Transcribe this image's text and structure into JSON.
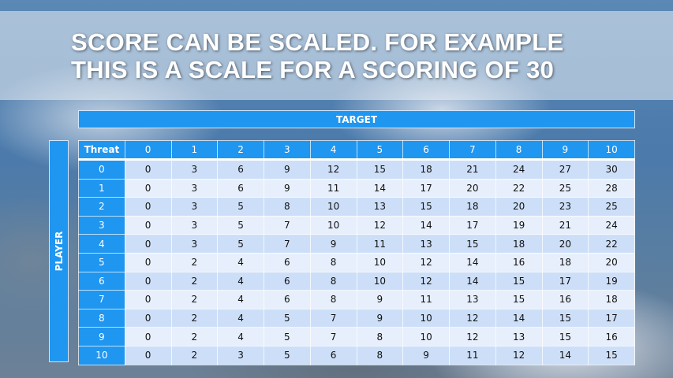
{
  "slide": {
    "title_lines": [
      "SCORE CAN BE SCALED. FOR EXAMPLE",
      "THIS IS A SCALE FOR A SCORING OF 30"
    ],
    "target_label": "TARGET",
    "player_label": "PLAYER"
  },
  "table": {
    "corner_header": "Threat",
    "columns": [
      "0",
      "1",
      "2",
      "3",
      "4",
      "5",
      "6",
      "7",
      "8",
      "9",
      "10"
    ],
    "rows": [
      {
        "label": "0",
        "values": [
          "0",
          "3",
          "6",
          "9",
          "12",
          "15",
          "18",
          "21",
          "24",
          "27",
          "30"
        ]
      },
      {
        "label": "1",
        "values": [
          "0",
          "3",
          "6",
          "9",
          "11",
          "14",
          "17",
          "20",
          "22",
          "25",
          "28"
        ]
      },
      {
        "label": "2",
        "values": [
          "0",
          "3",
          "5",
          "8",
          "10",
          "13",
          "15",
          "18",
          "20",
          "23",
          "25"
        ]
      },
      {
        "label": "3",
        "values": [
          "0",
          "3",
          "5",
          "7",
          "10",
          "12",
          "14",
          "17",
          "19",
          "21",
          "24"
        ]
      },
      {
        "label": "4",
        "values": [
          "0",
          "3",
          "5",
          "7",
          "9",
          "11",
          "13",
          "15",
          "18",
          "20",
          "22"
        ]
      },
      {
        "label": "5",
        "values": [
          "0",
          "2",
          "4",
          "6",
          "8",
          "10",
          "12",
          "14",
          "16",
          "18",
          "20"
        ]
      },
      {
        "label": "6",
        "values": [
          "0",
          "2",
          "4",
          "6",
          "8",
          "10",
          "12",
          "14",
          "15",
          "17",
          "19"
        ]
      },
      {
        "label": "7",
        "values": [
          "0",
          "2",
          "4",
          "6",
          "8",
          "9",
          "11",
          "13",
          "15",
          "16",
          "18"
        ]
      },
      {
        "label": "8",
        "values": [
          "0",
          "2",
          "4",
          "5",
          "7",
          "9",
          "10",
          "12",
          "14",
          "15",
          "17"
        ]
      },
      {
        "label": "9",
        "values": [
          "0",
          "2",
          "4",
          "5",
          "7",
          "8",
          "10",
          "12",
          "13",
          "15",
          "16"
        ]
      },
      {
        "label": "10",
        "values": [
          "0",
          "2",
          "3",
          "5",
          "6",
          "8",
          "9",
          "11",
          "12",
          "14",
          "15"
        ]
      }
    ]
  },
  "colors": {
    "header_blue": "#1f96f0",
    "row_dark": "#cddff8",
    "row_light": "#e7effc"
  }
}
